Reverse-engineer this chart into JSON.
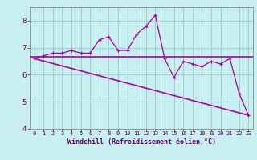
{
  "xlabel": "Windchill (Refroidissement éolien,°C)",
  "ylabel": "",
  "background_color": "#c8f0f0",
  "grid_color": "#a0d0d0",
  "line_color": "#aa00aa",
  "hours": [
    0,
    1,
    2,
    3,
    4,
    5,
    6,
    7,
    8,
    9,
    10,
    11,
    12,
    13,
    14,
    15,
    16,
    17,
    18,
    19,
    20,
    21,
    22,
    23
  ],
  "windchill": [
    6.6,
    6.7,
    6.8,
    6.8,
    6.9,
    6.8,
    6.8,
    7.3,
    7.4,
    6.9,
    6.9,
    7.5,
    7.8,
    8.2,
    6.6,
    5.9,
    6.5,
    6.4,
    6.3,
    6.5,
    6.4,
    6.6,
    5.3,
    4.5
  ],
  "trend_start_y": 6.6,
  "trend_end_y": 4.5,
  "mean_line_y": 6.67,
  "ylim": [
    4.0,
    8.5
  ],
  "xlim": [
    -0.5,
    23.5
  ],
  "yticks": [
    4,
    5,
    6,
    7,
    8
  ],
  "xticks": [
    0,
    1,
    2,
    3,
    4,
    5,
    6,
    7,
    8,
    9,
    10,
    11,
    12,
    13,
    14,
    15,
    16,
    17,
    18,
    19,
    20,
    21,
    22,
    23
  ]
}
